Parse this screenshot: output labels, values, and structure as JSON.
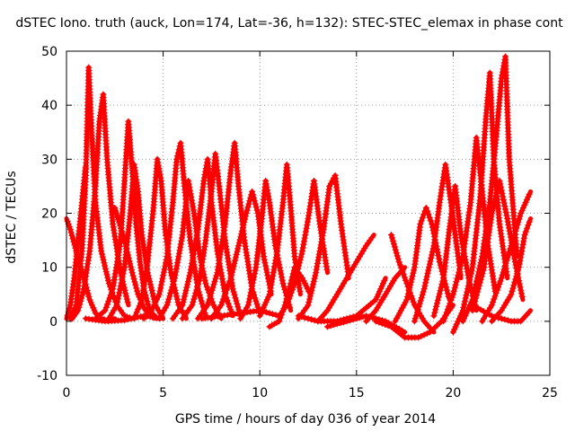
{
  "chart_data": {
    "type": "scatter",
    "title": "dSTEC Iono. truth (auck, Lon=174, Lat=-36, h=132): STEC-STEC_elemax in phase cont",
    "xlabel": "GPS time / hours of day 036 of year 2014",
    "ylabel": "dSTEC  / TECUs",
    "xlim": [
      0,
      25
    ],
    "ylim": [
      -10,
      50
    ],
    "xticks": [
      0,
      5,
      10,
      15,
      20,
      25
    ],
    "yticks": [
      -10,
      0,
      10,
      20,
      30,
      40,
      50
    ],
    "grid": true,
    "marker": "+",
    "color": "#ff0000",
    "series": [
      {
        "x": [
          0.0,
          0.2,
          0.5,
          0.9,
          1.2,
          1.5,
          1.8,
          2.1,
          2.5
        ],
        "y": [
          19,
          17,
          13,
          8,
          4,
          1.5,
          0.5,
          0.2,
          0.5
        ]
      },
      {
        "x": [
          0.0,
          0.2,
          0.4,
          0.6,
          0.8,
          1.0
        ],
        "y": [
          0.5,
          3,
          8,
          15,
          22,
          29
        ]
      },
      {
        "x": [
          0.2,
          0.5,
          0.8,
          1.0,
          1.15,
          1.3,
          1.5,
          1.8,
          2.2,
          2.6,
          3.0,
          3.4
        ],
        "y": [
          0.5,
          3,
          13,
          27,
          47,
          35,
          22,
          13,
          7,
          3,
          1,
          0.5
        ]
      },
      {
        "x": [
          0.3,
          0.6,
          0.9,
          1.2,
          1.5,
          1.7,
          1.9,
          2.1,
          2.4,
          2.8,
          3.2
        ],
        "y": [
          0.5,
          2,
          6,
          13,
          25,
          37,
          42,
          30,
          18,
          9,
          3
        ]
      },
      {
        "x": [
          1.5,
          2.0,
          2.4,
          2.8,
          3.0,
          3.2,
          3.4,
          3.6,
          3.8,
          4.0,
          4.3,
          4.7
        ],
        "y": [
          0.5,
          2,
          6,
          15,
          26,
          37,
          28,
          18,
          11,
          6,
          2,
          0.5
        ]
      },
      {
        "x": [
          2.2,
          2.6,
          3.0,
          3.3,
          3.5,
          3.7,
          3.9,
          4.2,
          4.6,
          5.0
        ],
        "y": [
          0.5,
          3,
          10,
          20,
          29,
          24,
          16,
          9,
          3,
          0.5
        ]
      },
      {
        "x": [
          2.5,
          3.0,
          3.4,
          3.7,
          4.0,
          4.3,
          4.6
        ],
        "y": [
          21,
          15,
          9,
          5,
          2.5,
          1,
          0.5
        ]
      },
      {
        "x": [
          3.5,
          3.9,
          4.2,
          4.5,
          4.7,
          4.9,
          5.1,
          5.4,
          5.8,
          6.2
        ],
        "y": [
          0.5,
          4,
          11,
          21,
          30,
          26,
          17,
          9,
          3,
          0.5
        ]
      },
      {
        "x": [
          4.0,
          4.4,
          4.8,
          5.2,
          5.5,
          5.7,
          5.9,
          6.1,
          6.4,
          6.8,
          7.2
        ],
        "y": [
          0.5,
          2,
          5,
          12,
          22,
          30,
          33,
          25,
          15,
          6,
          1
        ]
      },
      {
        "x": [
          4.8,
          5.2,
          5.6,
          6.0,
          6.3,
          6.6,
          6.9,
          7.2,
          7.6,
          8.0
        ],
        "y": [
          0.5,
          3,
          8,
          16,
          26,
          20,
          12,
          7,
          3,
          0.5
        ]
      },
      {
        "x": [
          5.5,
          6.0,
          6.4,
          6.8,
          7.1,
          7.3,
          7.5,
          7.8,
          8.2,
          8.6
        ],
        "y": [
          0.5,
          3,
          9,
          17,
          26,
          30,
          22,
          13,
          5,
          1
        ]
      },
      {
        "x": [
          6.0,
          6.5,
          6.9,
          7.2,
          7.5,
          7.7,
          7.9,
          8.2,
          8.6,
          9.0
        ],
        "y": [
          0.5,
          3,
          8,
          15,
          24,
          31,
          25,
          15,
          6,
          1
        ]
      },
      {
        "x": [
          6.8,
          7.3,
          7.8,
          8.2,
          8.5,
          8.7,
          8.9,
          9.2,
          9.6,
          10.0
        ],
        "y": [
          0.5,
          3,
          9,
          18,
          28,
          33,
          25,
          15,
          6,
          1.5
        ]
      },
      {
        "x": [
          7.5,
          8.0,
          8.5,
          8.9,
          9.3,
          9.6,
          9.9,
          10.2,
          10.6
        ],
        "y": [
          0.5,
          3,
          8,
          14,
          20,
          24,
          20,
          12,
          5
        ]
      },
      {
        "x": [
          9.0,
          9.4,
          9.8,
          10.1,
          10.3,
          10.5,
          10.8,
          11.2,
          11.6
        ],
        "y": [
          0.5,
          3,
          10,
          19,
          26,
          22,
          14,
          7,
          2
        ]
      },
      {
        "x": [
          10.0,
          10.5,
          10.9,
          11.2,
          11.4,
          11.6,
          11.8,
          12.1
        ],
        "y": [
          1,
          5,
          13,
          22,
          29,
          21,
          12,
          5
        ]
      },
      {
        "x": [
          10.5,
          11.0,
          11.3,
          11.6,
          11.8,
          12.2,
          12.6
        ],
        "y": [
          -1,
          0,
          3,
          7,
          10,
          8,
          5
        ]
      },
      {
        "x": [
          11.0,
          11.4,
          11.8,
          12.2,
          12.5,
          12.8,
          13.1,
          13.5
        ],
        "y": [
          1,
          3,
          7,
          13,
          19,
          26,
          18,
          9
        ]
      },
      {
        "x": [
          12.0,
          12.5,
          12.9,
          13.3,
          13.6,
          13.9,
          14.2,
          14.6
        ],
        "y": [
          0.5,
          3,
          9,
          17,
          25,
          27,
          18,
          8
        ]
      },
      {
        "x": [
          13.0,
          13.5,
          14.0,
          14.5,
          15.0,
          15.5,
          15.9
        ],
        "y": [
          0,
          2,
          5,
          8,
          11,
          14,
          16
        ]
      },
      {
        "x": [
          12.0,
          13.0,
          14.0,
          15.0,
          16.0,
          16.5
        ],
        "y": [
          1,
          0,
          0,
          1,
          4,
          8
        ]
      },
      {
        "x": [
          15.5,
          16.0,
          16.5,
          17.0,
          17.5
        ],
        "y": [
          0,
          2,
          5,
          8,
          10
        ]
      },
      {
        "x": [
          16.8,
          17.2,
          17.6,
          18.0,
          18.5,
          19.0
        ],
        "y": [
          16,
          11,
          7,
          3,
          0,
          -2
        ]
      },
      {
        "x": [
          16.0,
          16.8,
          17.5,
          18.2,
          18.8,
          19.4,
          20.0
        ],
        "y": [
          0,
          -1,
          -3,
          -3,
          -2,
          0,
          3
        ]
      },
      {
        "x": [
          17.0,
          17.6,
          18.0,
          18.3,
          18.6,
          18.9,
          19.3,
          19.8
        ],
        "y": [
          0,
          4,
          10,
          18,
          21,
          18,
          11,
          4
        ]
      },
      {
        "x": [
          18.0,
          18.5,
          19.0,
          19.3,
          19.6,
          20.0,
          20.4
        ],
        "y": [
          0,
          6,
          14,
          22,
          29,
          19,
          8
        ]
      },
      {
        "x": [
          19.0,
          19.5,
          19.8,
          20.1,
          20.4,
          20.8,
          21.2
        ],
        "y": [
          1,
          8,
          17,
          25,
          16,
          8,
          2
        ]
      },
      {
        "x": [
          19.5,
          20.0,
          20.5,
          20.9,
          21.2,
          21.5,
          21.8,
          22.2
        ],
        "y": [
          0,
          5,
          12,
          22,
          34,
          24,
          14,
          5
        ]
      },
      {
        "x": [
          20.0,
          20.5,
          21.0,
          21.4,
          21.7,
          21.9,
          22.1,
          22.4,
          22.8
        ],
        "y": [
          -2,
          2,
          10,
          23,
          38,
          46,
          30,
          18,
          8
        ]
      },
      {
        "x": [
          20.5,
          21.0,
          21.5,
          21.9,
          22.2,
          22.5,
          22.7,
          22.9,
          23.3
        ],
        "y": [
          0,
          4,
          12,
          22,
          33,
          45,
          49,
          30,
          12
        ]
      },
      {
        "x": [
          21.0,
          21.6,
          22.0,
          22.4,
          22.8,
          23.2,
          23.6
        ],
        "y": [
          2,
          10,
          20,
          26,
          19,
          11,
          4
        ]
      },
      {
        "x": [
          21.5,
          22.0,
          22.5,
          23.0,
          23.5,
          24.0
        ],
        "y": [
          0,
          3,
          8,
          14,
          20,
          24
        ]
      },
      {
        "x": [
          22.0,
          22.5,
          23.0,
          23.4,
          23.7,
          24.0
        ],
        "y": [
          0,
          2,
          5,
          10,
          16,
          19
        ]
      },
      {
        "x": [
          21.0,
          22.0,
          23.0,
          23.5,
          24.0
        ],
        "y": [
          3,
          1,
          0,
          0,
          2
        ]
      },
      {
        "x": [
          1.0,
          2.0,
          3.0,
          4.0,
          5.0
        ],
        "y": [
          0.5,
          0,
          0.2,
          1,
          0.5
        ]
      },
      {
        "x": [
          7.0,
          8.0,
          9.0,
          10.0,
          11.0
        ],
        "y": [
          0.5,
          1,
          1.5,
          2,
          1
        ]
      },
      {
        "x": [
          13.5,
          14.5,
          15.5,
          16.5,
          17.5
        ],
        "y": [
          -1,
          0,
          1,
          0,
          -2
        ]
      }
    ]
  }
}
